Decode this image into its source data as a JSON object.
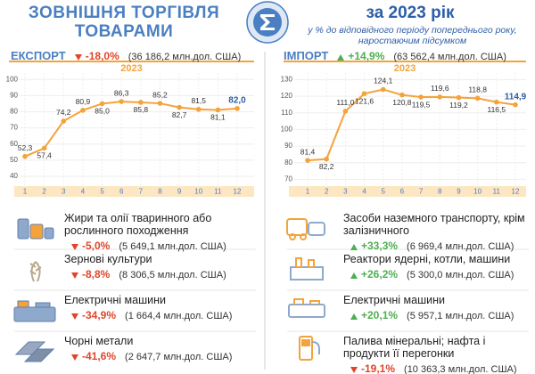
{
  "header": {
    "title": [
      "ЗОВНІШНЯ ТОРГІВЛЯ",
      "ТОВАРАМИ"
    ],
    "period": "за 2023 рік",
    "subtitle": "у % до відповідного періоду попереднього року, наростаючим підсумком"
  },
  "panels": [
    {
      "label": "ЕКСПОРТ",
      "change": "-18,0%",
      "amount": "(36 186,2 млн.дол. США)",
      "items": [
        {
          "name": "Жири та олії тваринного або рослинного походження",
          "change": "-5,0%",
          "amount": "(5 649,1 млн.дол. США)"
        },
        {
          "name": "Зернові культури",
          "change": "-8,8%",
          "amount": "(8 306,5 млн.дол. США)"
        },
        {
          "name": "Електричні машини",
          "change": "-34,9%",
          "amount": "(1 664,4 млн.дол. США)"
        },
        {
          "name": "Чорні метали",
          "change": "-41,6%",
          "amount": "(2 647,7 млн.дол. США)"
        }
      ]
    },
    {
      "label": "ІМПОРТ",
      "change": "+14,9%",
      "amount": "(63 562,4 млн.дол. США)",
      "items": [
        {
          "name": "Засоби наземного транспорту, крім залізничного",
          "change": "+33,3%",
          "amount": "(6 969,4 млн.дол. США)"
        },
        {
          "name": "Реактори ядерні, котли, машини",
          "change": "+26,2%",
          "amount": "(5 300,0 млн.дол. США)"
        },
        {
          "name": "Електричні машини",
          "change": "+20,1%",
          "amount": "(5 957,1 млн.дол. США)"
        },
        {
          "name": "Палива мінеральні; нафта і продукти її перегонки",
          "change": "-19,1%",
          "amount": "(10 363,3 млн.дол. США)"
        }
      ]
    }
  ],
  "chart_data": [
    {
      "type": "line",
      "subtitle": "2023",
      "color": "#f4a33a",
      "grid": true,
      "x": [
        1,
        2,
        3,
        4,
        5,
        6,
        7,
        8,
        9,
        10,
        11,
        12
      ],
      "xlim": [
        1,
        12
      ],
      "xticks": [
        1,
        2,
        3,
        4,
        5,
        6,
        7,
        8,
        9,
        10,
        11,
        12
      ],
      "values": [
        52.3,
        57.4,
        74.2,
        80.9,
        85.0,
        86.3,
        85.8,
        85.2,
        82.7,
        81.5,
        81.1,
        82.0
      ],
      "value_labels": [
        "52,3",
        "57,4",
        "74,2",
        "80,9",
        "85,0",
        "86,3",
        "85,8",
        "85,2",
        "82,7",
        "81,5",
        "81,1",
        "82,0"
      ],
      "ylim": [
        35,
        104
      ],
      "yticks": [
        40,
        50,
        60,
        70,
        80,
        90,
        100
      ]
    },
    {
      "type": "line",
      "subtitle": "2023",
      "color": "#f4a33a",
      "grid": true,
      "x": [
        1,
        2,
        3,
        4,
        5,
        6,
        7,
        8,
        9,
        10,
        11,
        12
      ],
      "xlim": [
        1,
        12
      ],
      "xticks": [
        1,
        2,
        3,
        4,
        5,
        6,
        7,
        8,
        9,
        10,
        11,
        12
      ],
      "values": [
        81.4,
        82.2,
        111.0,
        121.6,
        124.1,
        120.8,
        119.5,
        119.6,
        119.2,
        118.8,
        116.5,
        114.9
      ],
      "value_labels": [
        "81,4",
        "82,2",
        "111,0",
        "121,6",
        "124,1",
        "120,8",
        "119,5",
        "119,6",
        "119,2",
        "118,8",
        "116,5",
        "114,9"
      ],
      "ylim": [
        67,
        134
      ],
      "yticks": [
        70,
        80,
        90,
        100,
        110,
        120,
        130
      ]
    }
  ]
}
